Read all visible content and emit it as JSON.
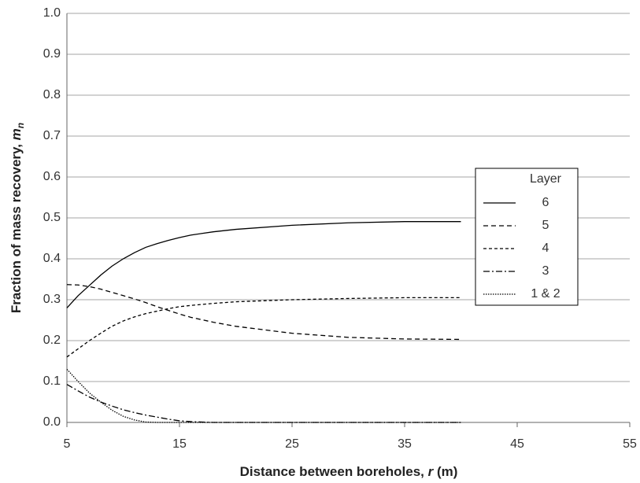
{
  "chart_data": {
    "type": "line",
    "xlabel": [
      "Distance between boreholes, ",
      "r",
      "  (m)"
    ],
    "ylabel": [
      "Fraction of mass recovery, ",
      "m",
      "n"
    ],
    "x": [
      5,
      6,
      7,
      8,
      9,
      10,
      11,
      12,
      13,
      14,
      15,
      16,
      18,
      20,
      25,
      30,
      35,
      40
    ],
    "series": [
      {
        "name": "6",
        "color": "#000000",
        "dash": "none",
        "values": [
          0.28,
          0.31,
          0.335,
          0.36,
          0.382,
          0.4,
          0.415,
          0.428,
          0.437,
          0.445,
          0.452,
          0.458,
          0.466,
          0.472,
          0.482,
          0.488,
          0.491,
          0.491
        ]
      },
      {
        "name": "5",
        "color": "#000000",
        "dash": "6 4",
        "values": [
          0.337,
          0.336,
          0.332,
          0.326,
          0.318,
          0.31,
          0.302,
          0.293,
          0.283,
          0.274,
          0.265,
          0.257,
          0.245,
          0.235,
          0.218,
          0.208,
          0.204,
          0.203
        ]
      },
      {
        "name": "4",
        "color": "#000000",
        "dash": "4 3",
        "values": [
          0.16,
          0.18,
          0.2,
          0.218,
          0.235,
          0.248,
          0.258,
          0.266,
          0.272,
          0.278,
          0.283,
          0.286,
          0.291,
          0.295,
          0.3,
          0.303,
          0.305,
          0.305
        ]
      },
      {
        "name": "3",
        "color": "#000000",
        "dash": "8 3 2 3",
        "values": [
          0.093,
          0.077,
          0.062,
          0.05,
          0.04,
          0.031,
          0.024,
          0.018,
          0.013,
          0.008,
          0.004,
          0.002,
          0,
          0,
          0,
          0,
          0,
          0
        ]
      },
      {
        "name": "1 & 2",
        "color": "#000000",
        "dash": "1.5 1.5",
        "values": [
          0.13,
          0.1,
          0.072,
          0.05,
          0.03,
          0.015,
          0.006,
          0.001,
          0,
          0,
          0,
          0,
          0,
          0,
          0,
          0,
          0,
          0
        ]
      }
    ],
    "legend_title": "Layer",
    "legend": "right",
    "xlim": [
      5,
      55
    ],
    "xticks": [
      5,
      15,
      25,
      35,
      45,
      55
    ],
    "ylim": [
      0,
      1
    ],
    "yticks": [
      {
        "value": 0,
        "label": "0.0"
      },
      0.1,
      0.2,
      0.3,
      0.4,
      0.5,
      0.6,
      0.7,
      0.8,
      0.9,
      {
        "value": 1,
        "label": "1.0"
      }
    ],
    "grid": true
  }
}
